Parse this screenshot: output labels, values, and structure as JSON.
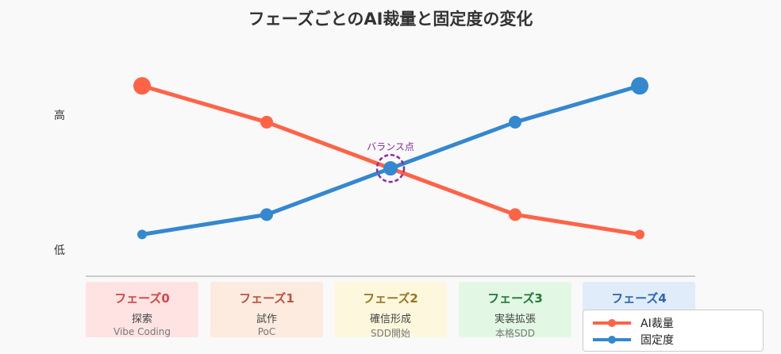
{
  "chart_data": {
    "type": "line",
    "title": "フェーズごとのAI裁量と固定度の変化",
    "categories": [
      "フェーズ0",
      "フェーズ1",
      "フェーズ2",
      "フェーズ3",
      "フェーズ4"
    ],
    "y_tick_labels": {
      "high": "高",
      "low": "低"
    },
    "ylim": [
      0,
      100
    ],
    "series": [
      {
        "name": "AI裁量",
        "color": "#ff6347",
        "values": [
          98,
          76,
          48,
          20,
          8
        ]
      },
      {
        "name": "固定度",
        "color": "#3388d0",
        "values": [
          8,
          20,
          48,
          76,
          98
        ]
      }
    ],
    "annotation": {
      "label": "バランス点",
      "category_index": 2,
      "color": "#8b2a9b"
    },
    "legend_position": "bottom-right",
    "grid": false
  },
  "phases": [
    {
      "name": "フェーズ0",
      "desc": "探索",
      "sub": "Vibe Coding",
      "bg": "#ffe3e3",
      "color": "#d64545"
    },
    {
      "name": "フェーズ1",
      "desc": "試作",
      "sub": "PoC",
      "bg": "#fdebe0",
      "color": "#c0503d"
    },
    {
      "name": "フェーズ2",
      "desc": "確信形成",
      "sub": "SDD開始",
      "bg": "#fdf8dd",
      "color": "#9a7422"
    },
    {
      "name": "フェーズ3",
      "desc": "実装拡張",
      "sub": "本格SDD",
      "bg": "#e2f8e4",
      "color": "#237a35"
    },
    {
      "name": "フェーズ4",
      "desc": "",
      "sub": "",
      "bg": "#e1ecfa",
      "color": "#2d66ad"
    }
  ]
}
